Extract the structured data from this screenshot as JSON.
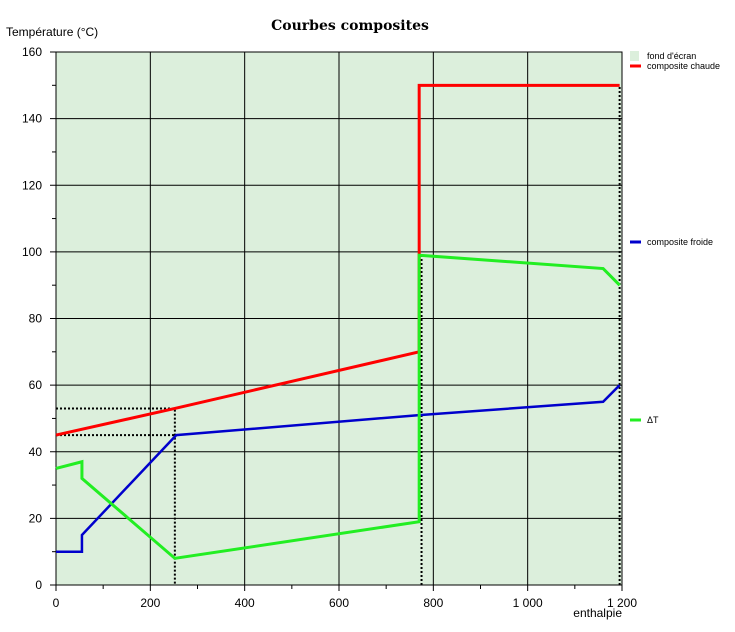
{
  "chart_data": {
    "type": "line",
    "title": "Courbes composites",
    "ylabel": "Température (°C)",
    "xlabel": "enthalpie",
    "xlim": [
      0,
      1200
    ],
    "ylim": [
      0,
      160
    ],
    "x_ticks": [
      0,
      200,
      400,
      600,
      800,
      1000,
      1200
    ],
    "x_tick_labels": [
      "0",
      "200",
      "400",
      "600",
      "800",
      "1 000",
      "1 200"
    ],
    "y_ticks": [
      0,
      20,
      40,
      60,
      80,
      100,
      120,
      140,
      160
    ],
    "y_tick_labels": [
      "0",
      "20",
      "40",
      "60",
      "80",
      "100",
      "120",
      "140",
      "160"
    ],
    "grid": true,
    "legend_placement": "right",
    "background_color": "#dcefdc",
    "legend": [
      {
        "label": "fond d'écran",
        "color": "#dcefdc"
      },
      {
        "label": "composite chaude",
        "color": "#ff0000"
      },
      {
        "label": "composite froide",
        "color": "#0000cc"
      },
      {
        "label": "ΔT",
        "color": "#22ee22"
      }
    ],
    "series": [
      {
        "name": "composite chaude",
        "color": "#ff0000",
        "points": [
          [
            0,
            45
          ],
          [
            252,
            53
          ],
          [
            770,
            70
          ],
          [
            770,
            150
          ],
          [
            1195,
            150
          ]
        ]
      },
      {
        "name": "composite froide",
        "color": "#0000cc",
        "points": [
          [
            0,
            10
          ],
          [
            55,
            10
          ],
          [
            55,
            15
          ],
          [
            255,
            45
          ],
          [
            770,
            51
          ],
          [
            1160,
            55
          ],
          [
            1195,
            60
          ]
        ]
      },
      {
        "name": "ΔT",
        "color": "#22ee22",
        "points": [
          [
            0,
            35
          ],
          [
            55,
            37
          ],
          [
            55,
            32
          ],
          [
            252,
            8
          ],
          [
            770,
            19
          ],
          [
            770,
            99
          ],
          [
            1160,
            95
          ],
          [
            1195,
            90
          ]
        ]
      }
    ],
    "reference_lines": [
      {
        "points": [
          [
            0,
            53
          ],
          [
            252,
            53
          ],
          [
            252,
            0
          ]
        ]
      },
      {
        "points": [
          [
            0,
            45
          ],
          [
            252,
            45
          ]
        ]
      },
      {
        "points": [
          [
            775,
            0
          ],
          [
            775,
            99
          ]
        ]
      },
      {
        "points": [
          [
            1195,
            0
          ],
          [
            1195,
            150
          ]
        ]
      }
    ]
  }
}
